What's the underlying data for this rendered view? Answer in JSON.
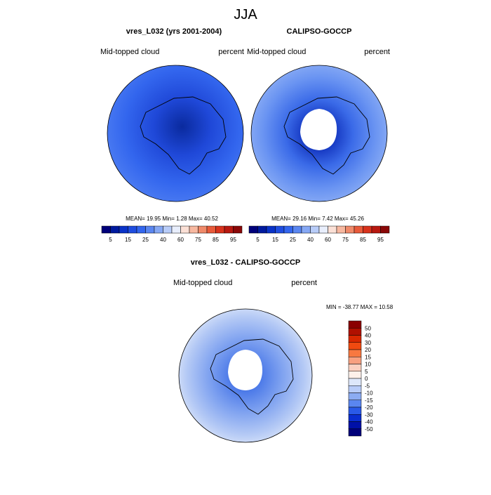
{
  "title": "JJA",
  "panels": [
    {
      "title": "vres_L032 (yrs 2001-2004)",
      "left_label": "Mid-topped cloud",
      "right_label": "percent",
      "stats": "MEAN=  19.95  Min=   1.28  Max=  40.52",
      "colorbar_labels": [
        "5",
        "15",
        "25",
        "40",
        "60",
        "75",
        "85",
        "95"
      ]
    },
    {
      "title": "CALIPSO-GOCCP",
      "left_label": "Mid-topped cloud",
      "right_label": "percent",
      "stats": "MEAN=  29.16  Min=   7.42  Max=  45.26",
      "colorbar_labels": [
        "5",
        "15",
        "25",
        "40",
        "60",
        "75",
        "85",
        "95"
      ]
    }
  ],
  "diff": {
    "title": "vres_L032 - CALIPSO-GOCCP",
    "left_label": "Mid-topped cloud",
    "right_label": "percent",
    "stats": "MIN = -38.77 MAX =  10.58",
    "colorbar_labels": [
      "50",
      "40",
      "30",
      "20",
      "15",
      "10",
      "5",
      "0",
      "-5",
      "-10",
      "-15",
      "-20",
      "-30",
      "-40",
      "-50"
    ]
  }
}
